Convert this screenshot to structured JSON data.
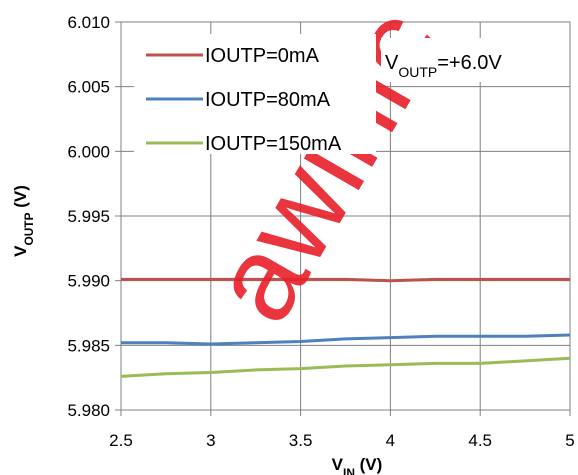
{
  "chart_data": {
    "type": "line",
    "xlabel": "V_IN (V)",
    "ylabel": "V_OUTP (V)",
    "xlim": [
      2.5,
      5
    ],
    "ylim": [
      5.98,
      6.01
    ],
    "x_ticks": [
      "2.5",
      "3",
      "3.5",
      "4",
      "4.5",
      "5"
    ],
    "y_ticks": [
      "5.980",
      "5.985",
      "5.990",
      "5.995",
      "6.000",
      "6.005",
      "6.010"
    ],
    "grid": true,
    "legend_position": "top-left",
    "annotation": "V_OUTP=+6.0V",
    "watermark": "awinic",
    "series": [
      {
        "name": "IOUTP=0mA",
        "color": "#c0504d",
        "x": [
          2.5,
          2.75,
          3.0,
          3.25,
          3.5,
          3.75,
          4.0,
          4.25,
          4.5,
          4.75,
          5.0
        ],
        "y": [
          5.9901,
          5.9901,
          5.9901,
          5.9901,
          5.9901,
          5.9901,
          5.99,
          5.9901,
          5.9901,
          5.9901,
          5.9901
        ]
      },
      {
        "name": "IOUTP=80mA",
        "color": "#4f81bd",
        "x": [
          2.5,
          2.75,
          3.0,
          3.25,
          3.5,
          3.75,
          4.0,
          4.25,
          4.5,
          4.75,
          5.0
        ],
        "y": [
          5.9852,
          5.9852,
          5.9851,
          5.9852,
          5.9853,
          5.9855,
          5.9856,
          5.9857,
          5.9857,
          5.9857,
          5.9858
        ]
      },
      {
        "name": "IOUTP=150mA",
        "color": "#9bbb59",
        "x": [
          2.5,
          2.75,
          3.0,
          3.25,
          3.5,
          3.75,
          4.0,
          4.25,
          4.5,
          4.75,
          5.0
        ],
        "y": [
          5.9826,
          5.9828,
          5.9829,
          5.9831,
          5.9832,
          5.9834,
          5.9835,
          5.9836,
          5.9836,
          5.9838,
          5.984
        ]
      }
    ]
  }
}
